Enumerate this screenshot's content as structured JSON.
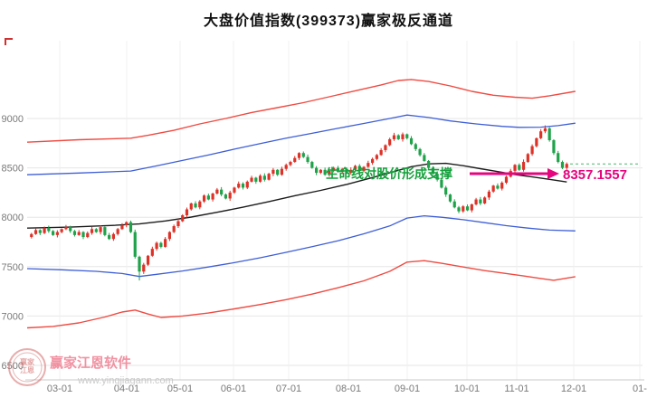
{
  "title": "大盘价值指数(399373)赢家极反通道",
  "annotation": {
    "text": "生命线对股价形成支撑",
    "price_label": "8357.1557"
  },
  "watermark": {
    "brand": "赢家江恩软件",
    "url": "www.yingjiagann.com",
    "seal_line1": "赢家",
    "seal_line2": "江恩"
  },
  "chart_data": {
    "type": "candlestick",
    "title": "大盘价值指数(399373)赢家极反通道",
    "ylim": [
      6350,
      9790
    ],
    "grid": true,
    "y_ticks": [
      6500,
      7000,
      7500,
      8000,
      8500,
      9000
    ],
    "x_ticks": [
      "03-01",
      "04-01",
      "05-01",
      "06-01",
      "07-01",
      "08-01",
      "09-01",
      "10-01",
      "11-01",
      "12-01",
      "01-"
    ],
    "last_price": 8540,
    "lifeline_support_value": 8357.1557,
    "colors": {
      "up": "#dd3228",
      "down": "#1fa24a",
      "band_red": "#ef4b42",
      "band_blue": "#3f5fd5",
      "lifeline": "#1c1c1c",
      "annotation_green": "#15a03c",
      "magenta": "#e5057f",
      "last_price_green": "#44b868",
      "watermark_pink": "#ef7f92",
      "watermark_red": "#d46a6a",
      "watermark_gray": "#c5c5c5",
      "corner_red": "#d03030",
      "grid": "#e6e6e6",
      "axis": "#c9c9c9",
      "tick_text": "#7a7a7a"
    },
    "candles_ohlc": [
      [
        7800,
        7842,
        7785,
        7830
      ],
      [
        7830,
        7890,
        7822,
        7870
      ],
      [
        7870,
        7879,
        7819,
        7840
      ],
      [
        7840,
        7906,
        7829,
        7890
      ],
      [
        7890,
        7915,
        7842,
        7860
      ],
      [
        7860,
        7871,
        7811,
        7820
      ],
      [
        7820,
        7868,
        7796,
        7850
      ],
      [
        7850,
        7888,
        7837,
        7880
      ],
      [
        7880,
        7922,
        7870,
        7900
      ],
      [
        7900,
        7914,
        7841,
        7860
      ],
      [
        7860,
        7872,
        7805,
        7820
      ],
      [
        7820,
        7870,
        7812,
        7850
      ],
      [
        7850,
        7859,
        7779,
        7800
      ],
      [
        7800,
        7856,
        7789,
        7840
      ],
      [
        7840,
        7905,
        7822,
        7880
      ],
      [
        7880,
        7891,
        7841,
        7850
      ],
      [
        7850,
        7918,
        7826,
        7900
      ],
      [
        7900,
        7908,
        7807,
        7820
      ],
      [
        7820,
        7842,
        7770,
        7780
      ],
      [
        7780,
        7844,
        7761,
        7830
      ],
      [
        7830,
        7892,
        7815,
        7880
      ],
      [
        7880,
        7940,
        7872,
        7920
      ],
      [
        7920,
        7959,
        7899,
        7950
      ],
      [
        7950,
        7966,
        7839,
        7850
      ],
      [
        7850,
        7875,
        7582,
        7600
      ],
      [
        7600,
        7611,
        7360,
        7450
      ],
      [
        7450,
        7538,
        7426,
        7520
      ],
      [
        7520,
        7618,
        7507,
        7610
      ],
      [
        7610,
        7702,
        7600,
        7680
      ],
      [
        7680,
        7754,
        7661,
        7740
      ],
      [
        7740,
        7752,
        7685,
        7700
      ],
      [
        7700,
        7800,
        7692,
        7780
      ],
      [
        7780,
        7859,
        7759,
        7850
      ],
      [
        7850,
        7926,
        7839,
        7910
      ],
      [
        7910,
        7985,
        7892,
        7960
      ],
      [
        7960,
        8031,
        7951,
        8020
      ],
      [
        8020,
        8098,
        7996,
        8080
      ],
      [
        8080,
        8148,
        8067,
        8140
      ],
      [
        8140,
        8162,
        8090,
        8100
      ],
      [
        8100,
        8174,
        8081,
        8160
      ],
      [
        8160,
        8232,
        8145,
        8220
      ],
      [
        8220,
        8240,
        8172,
        8180
      ],
      [
        8180,
        8249,
        8159,
        8240
      ],
      [
        8240,
        8296,
        8229,
        8280
      ],
      [
        8280,
        8305,
        8212,
        8230
      ],
      [
        8230,
        8241,
        8181,
        8190
      ],
      [
        8190,
        8268,
        8166,
        8250
      ],
      [
        8250,
        8308,
        8237,
        8300
      ],
      [
        8300,
        8362,
        8290,
        8340
      ],
      [
        8340,
        8354,
        8281,
        8300
      ],
      [
        8300,
        8372,
        8285,
        8360
      ],
      [
        8360,
        8420,
        8352,
        8400
      ],
      [
        8400,
        8409,
        8339,
        8360
      ],
      [
        8360,
        8436,
        8349,
        8420
      ],
      [
        8420,
        8445,
        8362,
        8380
      ],
      [
        8380,
        8451,
        8371,
        8440
      ],
      [
        8440,
        8498,
        8416,
        8480
      ],
      [
        8480,
        8488,
        8417,
        8430
      ],
      [
        8430,
        8512,
        8420,
        8490
      ],
      [
        8490,
        8544,
        8471,
        8530
      ],
      [
        8530,
        8572,
        8515,
        8560
      ],
      [
        8560,
        8620,
        8552,
        8600
      ],
      [
        8600,
        8659,
        8579,
        8650
      ],
      [
        8650,
        8666,
        8599,
        8610
      ],
      [
        8610,
        8635,
        8542,
        8560
      ],
      [
        8560,
        8571,
        8491,
        8500
      ],
      [
        8500,
        8518,
        8426,
        8450
      ],
      [
        8450,
        8488,
        8437,
        8480
      ],
      [
        8480,
        8502,
        8420,
        8430
      ],
      [
        8430,
        8484,
        8411,
        8470
      ],
      [
        8470,
        8512,
        8455,
        8500
      ],
      [
        8500,
        8520,
        8451,
        8460
      ],
      [
        8460,
        8499,
        8439,
        8490
      ],
      [
        8490,
        8506,
        8440,
        8450
      ],
      [
        8450,
        8505,
        8432,
        8480
      ],
      [
        8480,
        8531,
        8471,
        8520
      ],
      [
        8520,
        8538,
        8446,
        8470
      ],
      [
        8470,
        8518,
        8457,
        8510
      ],
      [
        8510,
        8572,
        8500,
        8550
      ],
      [
        8550,
        8604,
        8531,
        8590
      ],
      [
        8590,
        8642,
        8575,
        8630
      ],
      [
        8630,
        8700,
        8622,
        8680
      ],
      [
        8680,
        8739,
        8659,
        8730
      ],
      [
        8730,
        8806,
        8719,
        8790
      ],
      [
        8790,
        8855,
        8772,
        8830
      ],
      [
        8830,
        8841,
        8781,
        8790
      ],
      [
        8790,
        8858,
        8766,
        8840
      ],
      [
        8840,
        8848,
        8787,
        8800
      ],
      [
        8800,
        8822,
        8730,
        8740
      ],
      [
        8740,
        8754,
        8671,
        8690
      ],
      [
        8690,
        8702,
        8615,
        8630
      ],
      [
        8630,
        8650,
        8562,
        8570
      ],
      [
        8570,
        8579,
        8479,
        8500
      ],
      [
        8500,
        8516,
        8429,
        8440
      ],
      [
        8440,
        8465,
        8362,
        8380
      ],
      [
        8380,
        8391,
        8291,
        8300
      ],
      [
        8300,
        8318,
        8206,
        8230
      ],
      [
        8230,
        8238,
        8147,
        8160
      ],
      [
        8160,
        8182,
        8090,
        8100
      ],
      [
        8100,
        8114,
        8041,
        8060
      ],
      [
        8060,
        8122,
        8045,
        8110
      ],
      [
        8110,
        8130,
        8062,
        8070
      ],
      [
        8070,
        8139,
        8049,
        8130
      ],
      [
        8130,
        8196,
        8119,
        8180
      ],
      [
        8180,
        8205,
        8122,
        8140
      ],
      [
        8140,
        8211,
        8131,
        8200
      ],
      [
        8200,
        8278,
        8176,
        8260
      ],
      [
        8260,
        8328,
        8247,
        8320
      ],
      [
        8320,
        8342,
        8280,
        8290
      ],
      [
        8290,
        8364,
        8271,
        8350
      ],
      [
        8350,
        8422,
        8335,
        8410
      ],
      [
        8410,
        8490,
        8402,
        8470
      ],
      [
        8470,
        8539,
        8449,
        8530
      ],
      [
        8530,
        8546,
        8469,
        8480
      ],
      [
        8480,
        8585,
        8462,
        8560
      ],
      [
        8560,
        8651,
        8551,
        8640
      ],
      [
        8640,
        8738,
        8622,
        8720
      ],
      [
        8720,
        8808,
        8707,
        8800
      ],
      [
        8800,
        8892,
        8790,
        8870
      ],
      [
        8870,
        8930,
        8851,
        8900
      ],
      [
        8900,
        8912,
        8765,
        8780
      ],
      [
        8780,
        8790,
        8631,
        8650
      ],
      [
        8650,
        8672,
        8546,
        8560
      ],
      [
        8560,
        8574,
        8487,
        8500
      ],
      [
        8500,
        8555,
        8476,
        8540
      ]
    ],
    "bands": {
      "upper_red": [
        [
          0,
          8760
        ],
        [
          12,
          8785
        ],
        [
          24,
          8800
        ],
        [
          28,
          8830
        ],
        [
          34,
          8880
        ],
        [
          40,
          8945
        ],
        [
          46,
          9000
        ],
        [
          52,
          9060
        ],
        [
          58,
          9110
        ],
        [
          64,
          9160
        ],
        [
          70,
          9220
        ],
        [
          76,
          9280
        ],
        [
          82,
          9340
        ],
        [
          86,
          9385
        ],
        [
          89,
          9395
        ],
        [
          93,
          9375
        ],
        [
          98,
          9330
        ],
        [
          103,
          9275
        ],
        [
          108,
          9235
        ],
        [
          113,
          9215
        ],
        [
          117,
          9205
        ],
        [
          121,
          9230
        ],
        [
          127,
          9275
        ]
      ],
      "upper_blue": [
        [
          0,
          8430
        ],
        [
          12,
          8448
        ],
        [
          24,
          8468
        ],
        [
          30,
          8520
        ],
        [
          36,
          8575
        ],
        [
          42,
          8630
        ],
        [
          48,
          8690
        ],
        [
          54,
          8745
        ],
        [
          60,
          8800
        ],
        [
          66,
          8850
        ],
        [
          72,
          8900
        ],
        [
          78,
          8950
        ],
        [
          84,
          9000
        ],
        [
          88,
          9035
        ],
        [
          93,
          9010
        ],
        [
          98,
          8975
        ],
        [
          104,
          8945
        ],
        [
          110,
          8920
        ],
        [
          114,
          8910
        ],
        [
          119,
          8912
        ],
        [
          123,
          8928
        ],
        [
          127,
          8952
        ]
      ],
      "lifeline": [
        [
          0,
          7890
        ],
        [
          10,
          7900
        ],
        [
          20,
          7918
        ],
        [
          26,
          7932
        ],
        [
          32,
          7962
        ],
        [
          38,
          8002
        ],
        [
          44,
          8050
        ],
        [
          50,
          8102
        ],
        [
          56,
          8158
        ],
        [
          62,
          8218
        ],
        [
          68,
          8272
        ],
        [
          74,
          8332
        ],
        [
          80,
          8402
        ],
        [
          85,
          8462
        ],
        [
          89,
          8512
        ],
        [
          93,
          8540
        ],
        [
          97,
          8546
        ],
        [
          101,
          8522
        ],
        [
          105,
          8492
        ],
        [
          109,
          8462
        ],
        [
          113,
          8432
        ],
        [
          117,
          8408
        ],
        [
          121,
          8384
        ],
        [
          125,
          8357
        ]
      ],
      "lower_blue": [
        [
          0,
          7480
        ],
        [
          8,
          7468
        ],
        [
          16,
          7452
        ],
        [
          22,
          7430
        ],
        [
          26,
          7400
        ],
        [
          30,
          7422
        ],
        [
          36,
          7456
        ],
        [
          42,
          7496
        ],
        [
          48,
          7540
        ],
        [
          54,
          7590
        ],
        [
          60,
          7645
        ],
        [
          66,
          7702
        ],
        [
          72,
          7762
        ],
        [
          78,
          7832
        ],
        [
          84,
          7912
        ],
        [
          88,
          7992
        ],
        [
          92,
          8015
        ],
        [
          96,
          8000
        ],
        [
          101,
          7975
        ],
        [
          106,
          7945
        ],
        [
          111,
          7915
        ],
        [
          116,
          7890
        ],
        [
          121,
          7870
        ],
        [
          127,
          7862
        ]
      ],
      "lower_red": [
        [
          0,
          6880
        ],
        [
          6,
          6895
        ],
        [
          12,
          6930
        ],
        [
          18,
          6990
        ],
        [
          22,
          7040
        ],
        [
          25,
          7060
        ],
        [
          28,
          7020
        ],
        [
          31,
          6985
        ],
        [
          36,
          7000
        ],
        [
          42,
          7030
        ],
        [
          48,
          7072
        ],
        [
          54,
          7116
        ],
        [
          60,
          7166
        ],
        [
          66,
          7222
        ],
        [
          72,
          7286
        ],
        [
          78,
          7356
        ],
        [
          84,
          7452
        ],
        [
          88,
          7546
        ],
        [
          92,
          7560
        ],
        [
          96,
          7534
        ],
        [
          101,
          7496
        ],
        [
          106,
          7460
        ],
        [
          111,
          7430
        ],
        [
          115,
          7406
        ],
        [
          119,
          7380
        ],
        [
          122,
          7362
        ],
        [
          127,
          7398
        ]
      ]
    }
  }
}
